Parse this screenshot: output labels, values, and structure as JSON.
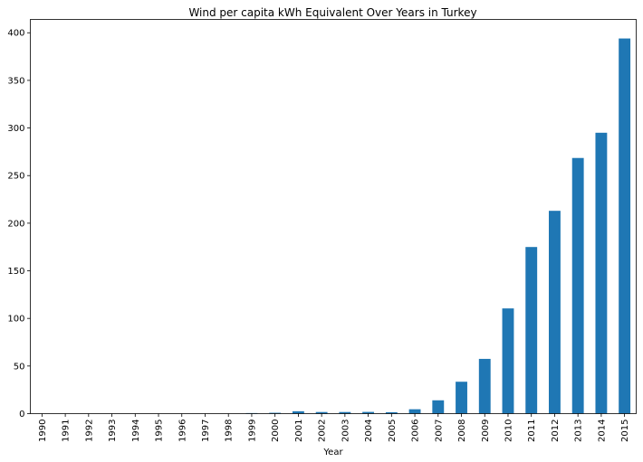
{
  "chart_data": {
    "type": "bar",
    "title": "Wind per capita kWh Equivalent Over Years in Turkey",
    "xlabel": "Year",
    "ylabel": "",
    "categories": [
      "1990",
      "1991",
      "1992",
      "1993",
      "1994",
      "1995",
      "1996",
      "1997",
      "1998",
      "1999",
      "2000",
      "2001",
      "2002",
      "2003",
      "2004",
      "2005",
      "2006",
      "2007",
      "2008",
      "2009",
      "2010",
      "2011",
      "2012",
      "2013",
      "2014",
      "2015"
    ],
    "values": [
      0,
      0,
      0,
      0,
      0,
      0,
      0,
      0,
      0,
      0.6,
      0.9,
      2.5,
      1.7,
      1.7,
      1.8,
      1.5,
      4.6,
      14,
      33.5,
      57.5,
      110.5,
      175,
      213,
      268.5,
      295,
      394
    ],
    "ylim": [
      0,
      414
    ],
    "yticks": [
      0,
      50,
      100,
      150,
      200,
      250,
      300,
      350,
      400
    ],
    "grid": false,
    "legend": "none",
    "bar_color": "#1f77b4"
  }
}
